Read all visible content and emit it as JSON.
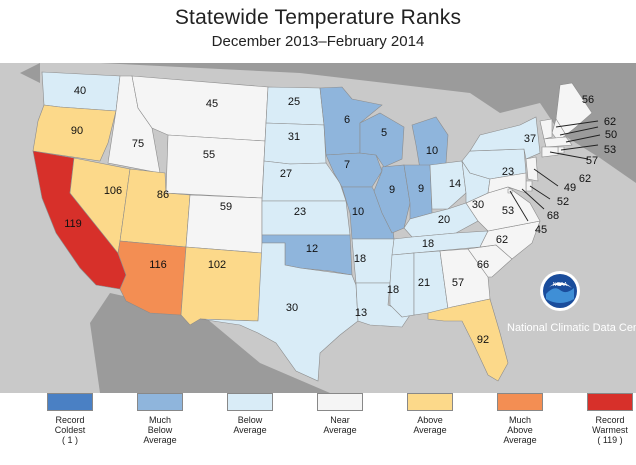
{
  "title": "Statewide Temperature Ranks",
  "subtitle": "December 2013–February 2014",
  "agency": "National Climatic Data Center",
  "logo_text": "NOAA",
  "colors": {
    "record_coldest": "#4a80c4",
    "much_below": "#8fb5dc",
    "below": "#d9ecf7",
    "near": "#f5f5f5",
    "above": "#fcd98a",
    "much_above": "#f38e53",
    "record_warmest": "#d7302a",
    "land_context": "#9b9b9b",
    "water": "#c9c9c9"
  },
  "legend": [
    {
      "key": "record_coldest",
      "line1": "Record",
      "line2": "Coldest",
      "line3": "( 1 )"
    },
    {
      "key": "much_below",
      "line1": "Much",
      "line2": "Below",
      "line3": "Average"
    },
    {
      "key": "below",
      "line1": "Below",
      "line2": "Average",
      "line3": ""
    },
    {
      "key": "near",
      "line1": "Near",
      "line2": "Average",
      "line3": ""
    },
    {
      "key": "above",
      "line1": "Above",
      "line2": "Average",
      "line3": ""
    },
    {
      "key": "much_above",
      "line1": "Much",
      "line2": "Above",
      "line3": "Average"
    },
    {
      "key": "record_warmest",
      "line1": "Record",
      "line2": "Warmest",
      "line3": "( 119 )"
    }
  ],
  "states": [
    {
      "code": "WA",
      "rank": "40",
      "cat": "below"
    },
    {
      "code": "OR",
      "rank": "90",
      "cat": "above"
    },
    {
      "code": "CA",
      "rank": "119",
      "cat": "record_warmest"
    },
    {
      "code": "NV",
      "rank": "106",
      "cat": "above"
    },
    {
      "code": "ID",
      "rank": "75",
      "cat": "near"
    },
    {
      "code": "MT",
      "rank": "45",
      "cat": "near"
    },
    {
      "code": "WY",
      "rank": "55",
      "cat": "near"
    },
    {
      "code": "UT",
      "rank": "86",
      "cat": "above"
    },
    {
      "code": "AZ",
      "rank": "116",
      "cat": "much_above"
    },
    {
      "code": "CO",
      "rank": "59",
      "cat": "near"
    },
    {
      "code": "NM",
      "rank": "102",
      "cat": "above"
    },
    {
      "code": "ND",
      "rank": "25",
      "cat": "below"
    },
    {
      "code": "SD",
      "rank": "31",
      "cat": "below"
    },
    {
      "code": "NE",
      "rank": "27",
      "cat": "below"
    },
    {
      "code": "KS",
      "rank": "23",
      "cat": "below"
    },
    {
      "code": "OK",
      "rank": "12",
      "cat": "much_below"
    },
    {
      "code": "TX",
      "rank": "30",
      "cat": "below"
    },
    {
      "code": "MN",
      "rank": "6",
      "cat": "much_below"
    },
    {
      "code": "IA",
      "rank": "7",
      "cat": "much_below"
    },
    {
      "code": "MO",
      "rank": "10",
      "cat": "much_below"
    },
    {
      "code": "AR",
      "rank": "18",
      "cat": "below"
    },
    {
      "code": "LA",
      "rank": "13",
      "cat": "below"
    },
    {
      "code": "WI",
      "rank": "5",
      "cat": "much_below"
    },
    {
      "code": "IL",
      "rank": "9",
      "cat": "much_below"
    },
    {
      "code": "MI",
      "rank": "10",
      "cat": "much_below"
    },
    {
      "code": "IN",
      "rank": "9",
      "cat": "much_below"
    },
    {
      "code": "OH",
      "rank": "14",
      "cat": "below"
    },
    {
      "code": "KY",
      "rank": "20",
      "cat": "below"
    },
    {
      "code": "TN",
      "rank": "18",
      "cat": "below"
    },
    {
      "code": "MS",
      "rank": "18",
      "cat": "below"
    },
    {
      "code": "AL",
      "rank": "21",
      "cat": "below"
    },
    {
      "code": "GA",
      "rank": "57",
      "cat": "near"
    },
    {
      "code": "FL",
      "rank": "92",
      "cat": "above"
    },
    {
      "code": "SC",
      "rank": "66",
      "cat": "near"
    },
    {
      "code": "NC",
      "rank": "62",
      "cat": "near"
    },
    {
      "code": "VA",
      "rank": "53",
      "cat": "near"
    },
    {
      "code": "WV",
      "rank": "30",
      "cat": "below"
    },
    {
      "code": "PA",
      "rank": "23",
      "cat": "below"
    },
    {
      "code": "NY",
      "rank": "37",
      "cat": "below"
    },
    {
      "code": "ME",
      "rank": "56",
      "cat": "near"
    },
    {
      "code": "NH",
      "rank": "62",
      "cat": "near"
    },
    {
      "code": "VT",
      "rank": "62",
      "cat": "near"
    },
    {
      "code": "MA",
      "rank": "50",
      "cat": "near"
    },
    {
      "code": "RI",
      "rank": "53",
      "cat": "near"
    },
    {
      "code": "CT",
      "rank": "57",
      "cat": "near"
    },
    {
      "code": "NJ",
      "rank": "49",
      "cat": "near"
    },
    {
      "code": "DE",
      "rank": "52",
      "cat": "near"
    },
    {
      "code": "MD",
      "rank": "68",
      "cat": "near"
    },
    {
      "code": "DC",
      "rank": "45",
      "cat": "near"
    }
  ]
}
